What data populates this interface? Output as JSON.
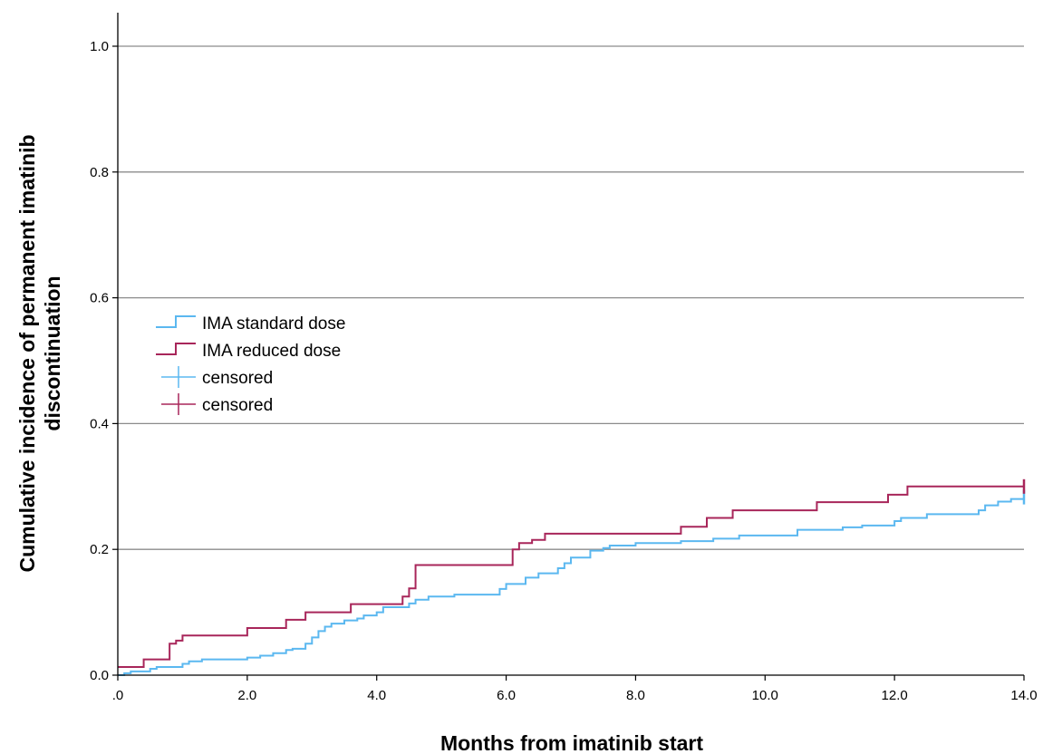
{
  "chart_data": {
    "type": "line",
    "xlabel": "Months from imatinib start",
    "ylabel_lines": [
      "Cumulative incidence of permanent imatinib",
      "discontinuation"
    ],
    "xlim": [
      0,
      14
    ],
    "ylim": [
      0,
      1
    ],
    "x_ticks": [
      0,
      2,
      4,
      6,
      8,
      10,
      12,
      14
    ],
    "x_tick_labels": [
      ".0",
      "2.0",
      "4.0",
      "6.0",
      "8.0",
      "10.0",
      "12.0",
      "14.0"
    ],
    "y_ticks": [
      0,
      0.2,
      0.4,
      0.6,
      0.8,
      1.0
    ],
    "y_tick_labels": [
      "0.0",
      "0.2",
      "0.4",
      "0.6",
      "0.8",
      "1.0"
    ],
    "grid": "horizontal",
    "legend_position": "middle-left",
    "step": true,
    "series": [
      {
        "name": "IMA standard dose",
        "color": "#5bb8f0",
        "x": [
          0,
          0.1,
          0.2,
          0.5,
          0.6,
          1.0,
          1.1,
          1.3,
          2.0,
          2.2,
          2.4,
          2.6,
          2.7,
          2.9,
          3.0,
          3.1,
          3.2,
          3.3,
          3.5,
          3.7,
          3.8,
          4.0,
          4.1,
          4.5,
          4.6,
          4.8,
          5.2,
          5.9,
          6.0,
          6.3,
          6.5,
          6.8,
          6.9,
          7.0,
          7.3,
          7.5,
          7.6,
          8.0,
          8.7,
          9.2,
          9.6,
          10.5,
          11.2,
          11.5,
          12.0,
          12.1,
          12.5,
          13.3,
          13.4,
          13.6,
          13.8,
          14.0
        ],
        "y": [
          0.0,
          0.003,
          0.006,
          0.01,
          0.013,
          0.018,
          0.022,
          0.025,
          0.028,
          0.031,
          0.035,
          0.04,
          0.042,
          0.05,
          0.06,
          0.07,
          0.077,
          0.082,
          0.087,
          0.09,
          0.095,
          0.1,
          0.108,
          0.114,
          0.12,
          0.125,
          0.128,
          0.137,
          0.145,
          0.155,
          0.162,
          0.17,
          0.178,
          0.187,
          0.198,
          0.202,
          0.206,
          0.21,
          0.213,
          0.217,
          0.222,
          0.231,
          0.235,
          0.238,
          0.245,
          0.25,
          0.256,
          0.262,
          0.27,
          0.276,
          0.28,
          0.283
        ],
        "censored_x": [
          14.0
        ]
      },
      {
        "name": "IMA reduced dose",
        "color": "#a8265a",
        "x": [
          0,
          0.4,
          0.8,
          0.9,
          1.0,
          2.0,
          2.6,
          2.9,
          3.6,
          4.4,
          4.5,
          4.6,
          6.1,
          6.2,
          6.4,
          6.6,
          8.7,
          9.1,
          9.5,
          10.8,
          11.9,
          12.2,
          14.0
        ],
        "y": [
          0.013,
          0.025,
          0.05,
          0.055,
          0.063,
          0.075,
          0.088,
          0.1,
          0.113,
          0.125,
          0.138,
          0.175,
          0.2,
          0.21,
          0.215,
          0.225,
          0.236,
          0.25,
          0.262,
          0.275,
          0.287,
          0.3,
          0.3
        ],
        "censored_x": [
          14.0
        ]
      }
    ],
    "legend": [
      {
        "label": "IMA standard dose",
        "kind": "step",
        "series": 0
      },
      {
        "label": "IMA reduced dose",
        "kind": "step",
        "series": 1
      },
      {
        "label": "censored",
        "kind": "censor",
        "series": 0
      },
      {
        "label": "censored",
        "kind": "censor",
        "series": 1
      }
    ]
  }
}
